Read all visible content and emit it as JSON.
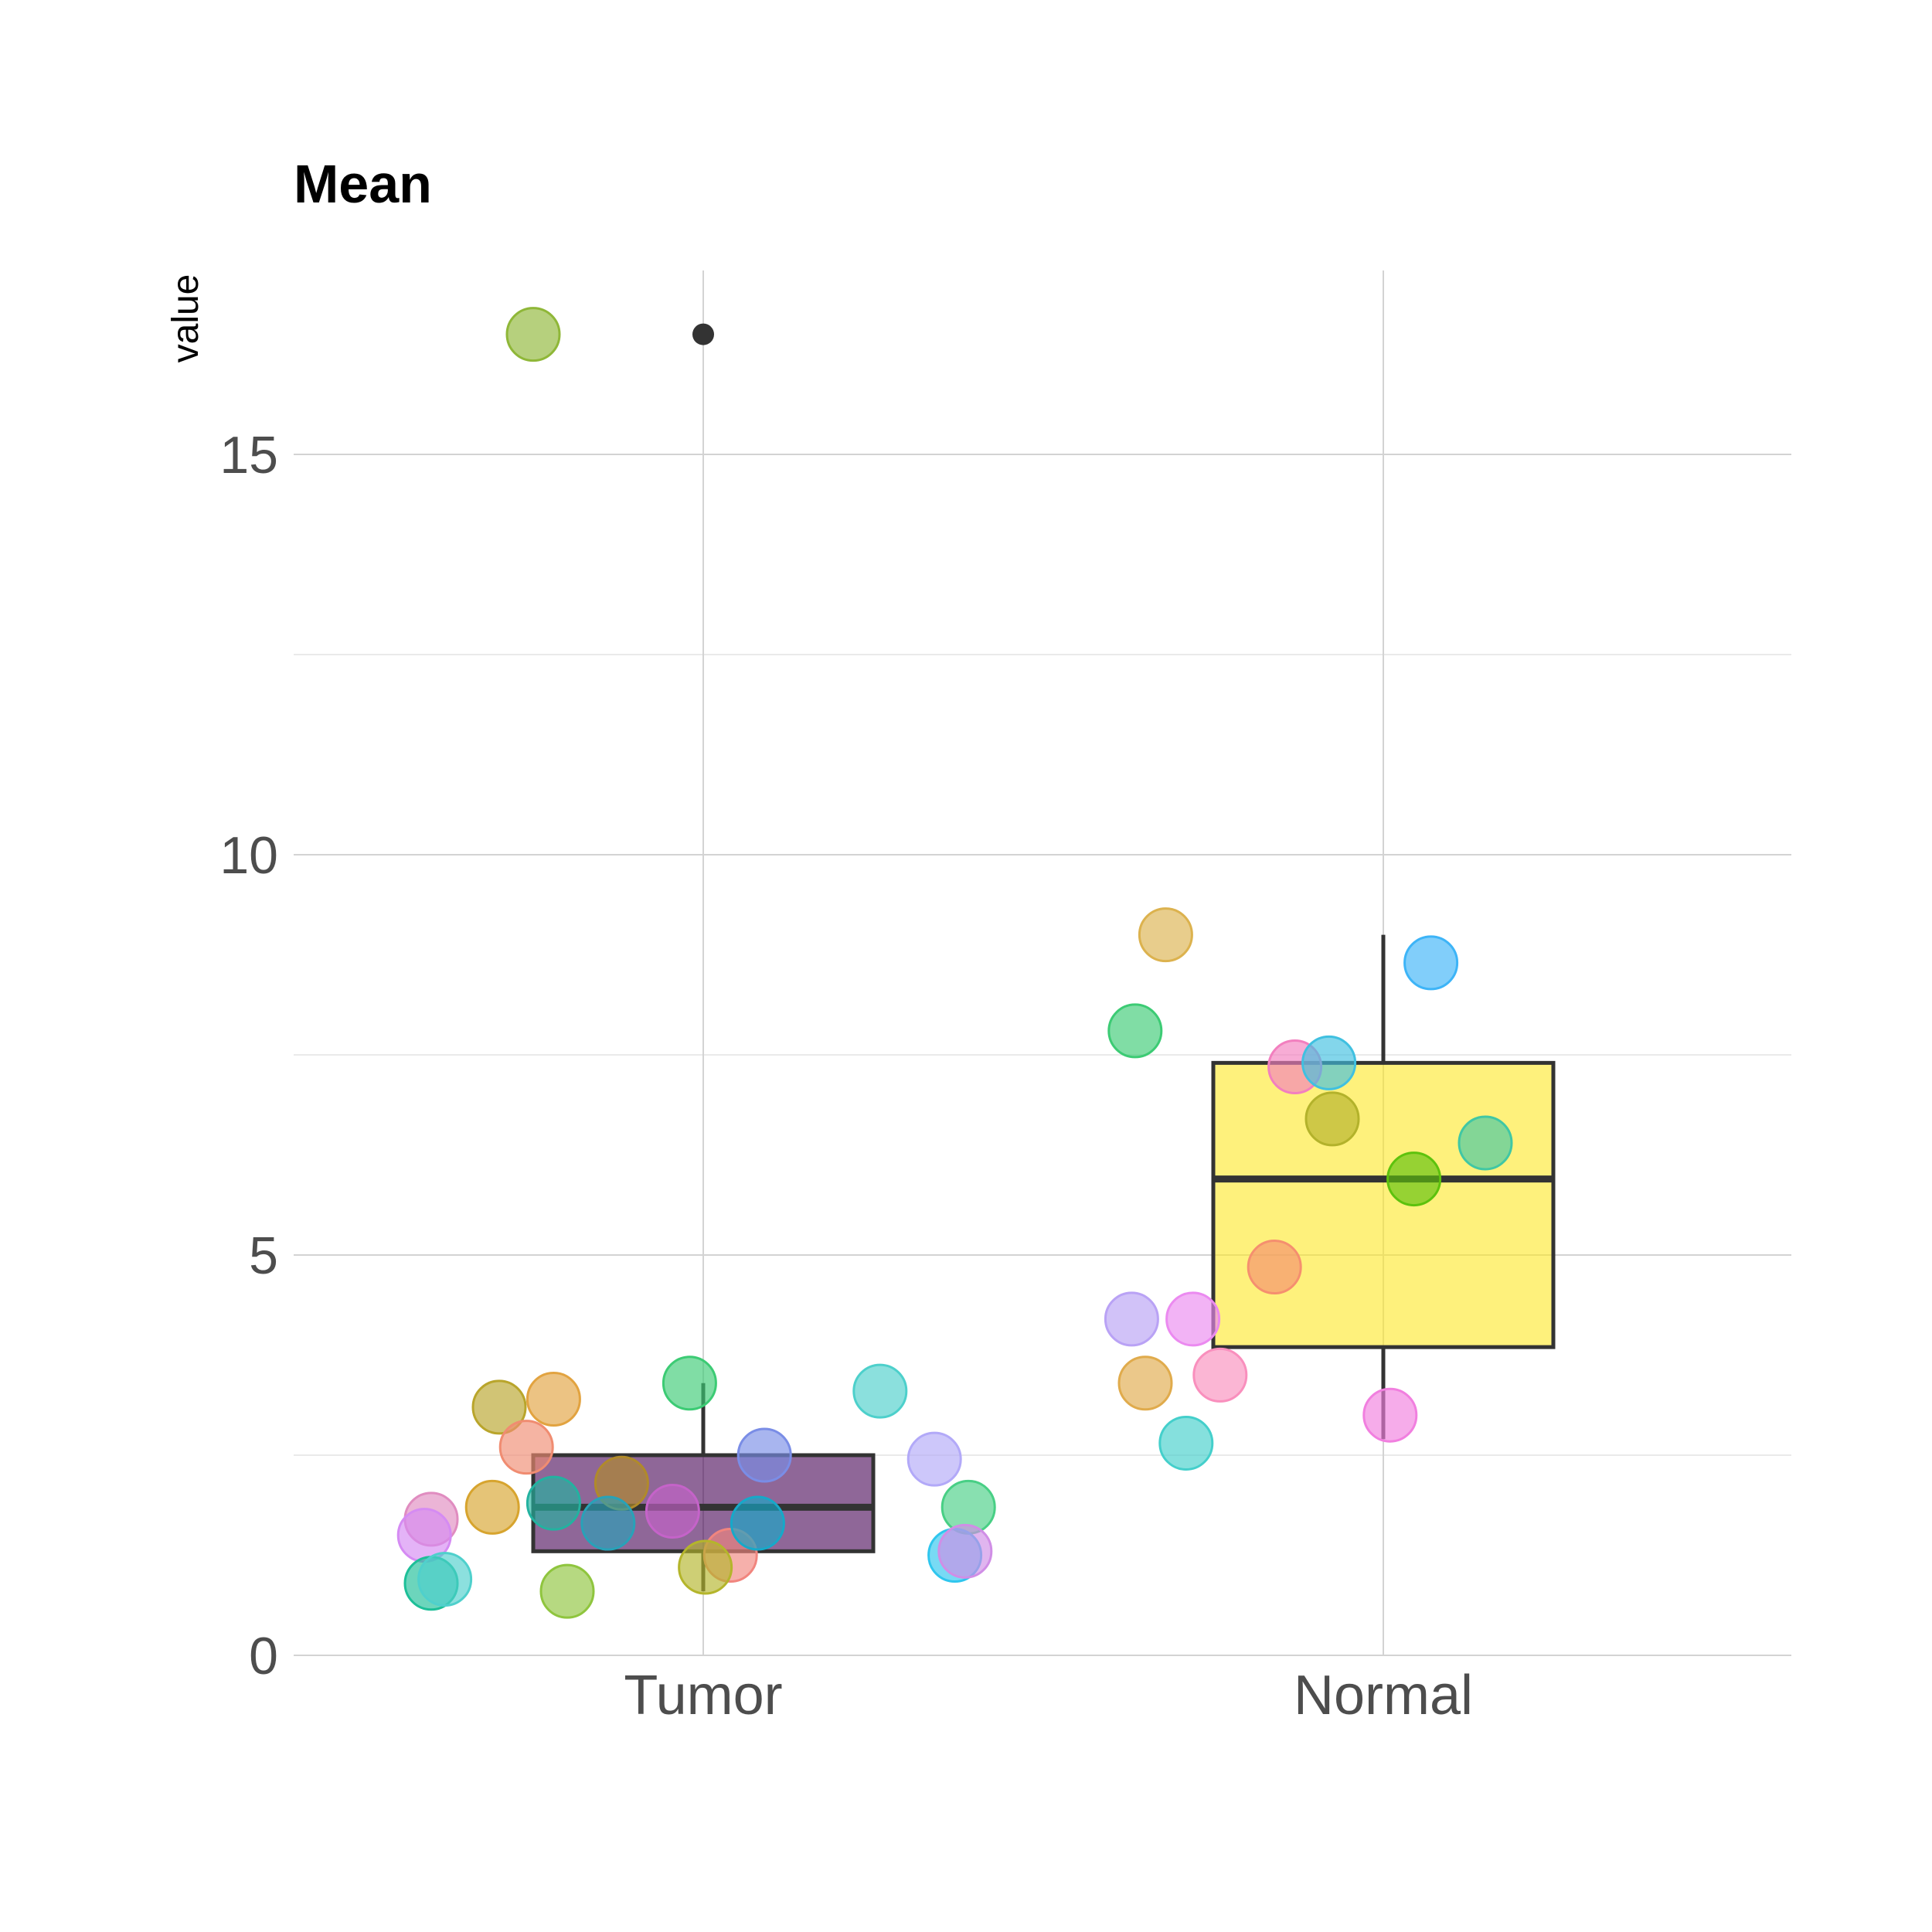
{
  "chart_data": {
    "type": "box",
    "title": "Mean",
    "xlabel": "",
    "ylabel": "value",
    "ylim": [
      0,
      17.2
    ],
    "yticks": [
      0,
      5,
      10,
      15
    ],
    "grid": true,
    "categories": [
      "Tumor",
      "Normal"
    ],
    "boxes": [
      {
        "name": "Tumor",
        "q1": 1.3,
        "median": 1.85,
        "q3": 2.5,
        "whisker_low": 0.8,
        "whisker_high": 3.4,
        "outliers": [
          16.5
        ],
        "fill": "#440154"
      },
      {
        "name": "Normal",
        "q1": 3.85,
        "median": 5.95,
        "q3": 7.4,
        "whisker_low": 2.7,
        "whisker_high": 9.0,
        "outliers": [],
        "fill": "#fde725"
      }
    ],
    "points": [
      {
        "category": "Tumor",
        "jitter": -0.25,
        "value": 16.5,
        "color": "#8fb738"
      },
      {
        "category": "Tumor",
        "jitter": -0.4,
        "value": 1.7,
        "color": "#e08cc0"
      },
      {
        "category": "Tumor",
        "jitter": -0.41,
        "value": 1.5,
        "color": "#d58bf3"
      },
      {
        "category": "Tumor",
        "jitter": -0.4,
        "value": 0.9,
        "color": "#1dbf98"
      },
      {
        "category": "Tumor",
        "jitter": -0.38,
        "value": 0.95,
        "color": "#4fd0cc"
      },
      {
        "category": "Tumor",
        "jitter": -0.3,
        "value": 3.1,
        "color": "#b9a52b"
      },
      {
        "category": "Tumor",
        "jitter": -0.31,
        "value": 1.85,
        "color": "#d7a42e"
      },
      {
        "category": "Tumor",
        "jitter": -0.26,
        "value": 2.6,
        "color": "#f08c71"
      },
      {
        "category": "Tumor",
        "jitter": -0.22,
        "value": 3.2,
        "color": "#e2a340"
      },
      {
        "category": "Tumor",
        "jitter": -0.22,
        "value": 1.9,
        "color": "#23b2a0"
      },
      {
        "category": "Tumor",
        "jitter": -0.2,
        "value": 0.8,
        "color": "#8fc53e"
      },
      {
        "category": "Tumor",
        "jitter": -0.12,
        "value": 2.15,
        "color": "#b08a2a"
      },
      {
        "category": "Tumor",
        "jitter": -0.14,
        "value": 1.65,
        "color": "#28a2b8"
      },
      {
        "category": "Tumor",
        "jitter": -0.045,
        "value": 1.8,
        "color": "#c563c9"
      },
      {
        "category": "Tumor",
        "jitter": -0.02,
        "value": 3.4,
        "color": "#3ccb74"
      },
      {
        "category": "Tumor",
        "jitter": 0.04,
        "value": 1.25,
        "color": "#f1857e"
      },
      {
        "category": "Tumor",
        "jitter": 0.003,
        "value": 1.1,
        "color": "#b4b52b"
      },
      {
        "category": "Tumor",
        "jitter": 0.09,
        "value": 2.5,
        "color": "#7a8de6"
      },
      {
        "category": "Tumor",
        "jitter": 0.08,
        "value": 1.65,
        "color": "#16a9c9"
      },
      {
        "category": "Tumor",
        "jitter": 0.26,
        "value": 3.3,
        "color": "#4dd0cb"
      },
      {
        "category": "Tumor",
        "jitter": 0.34,
        "value": 2.45,
        "color": "#b2a9f8"
      },
      {
        "category": "Tumor",
        "jitter": 0.39,
        "value": 1.85,
        "color": "#48cf85"
      },
      {
        "category": "Tumor",
        "jitter": 0.37,
        "value": 1.25,
        "color": "#2fc6ee"
      },
      {
        "category": "Tumor",
        "jitter": 0.385,
        "value": 1.3,
        "color": "#d08ee6"
      },
      {
        "category": "Normal",
        "jitter": -0.32,
        "value": 9.0,
        "color": "#dcb24e"
      },
      {
        "category": "Normal",
        "jitter": -0.365,
        "value": 7.8,
        "color": "#3ccb74"
      },
      {
        "category": "Normal",
        "jitter": -0.37,
        "value": 4.2,
        "color": "#b9a2f5"
      },
      {
        "category": "Normal",
        "jitter": -0.35,
        "value": 3.4,
        "color": "#e0ab4c"
      },
      {
        "category": "Normal",
        "jitter": -0.29,
        "value": 2.65,
        "color": "#44cfcb"
      },
      {
        "category": "Normal",
        "jitter": -0.28,
        "value": 4.2,
        "color": "#eb8af0"
      },
      {
        "category": "Normal",
        "jitter": -0.24,
        "value": 3.5,
        "color": "#f98fbd"
      },
      {
        "category": "Normal",
        "jitter": -0.16,
        "value": 4.85,
        "color": "#f58f6f"
      },
      {
        "category": "Normal",
        "jitter": -0.13,
        "value": 7.35,
        "color": "#f27fbf"
      },
      {
        "category": "Normal",
        "jitter": -0.08,
        "value": 7.4,
        "color": "#40c0e0"
      },
      {
        "category": "Normal",
        "jitter": -0.075,
        "value": 6.7,
        "color": "#b3b22b"
      },
      {
        "category": "Normal",
        "jitter": 0.045,
        "value": 5.95,
        "color": "#5dc20d"
      },
      {
        "category": "Normal",
        "jitter": 0.07,
        "value": 8.65,
        "color": "#3db4f7"
      },
      {
        "category": "Normal",
        "jitter": 0.15,
        "value": 6.4,
        "color": "#40c7a4"
      },
      {
        "category": "Normal",
        "jitter": 0.01,
        "value": 3.0,
        "color": "#f17fdf"
      }
    ]
  }
}
